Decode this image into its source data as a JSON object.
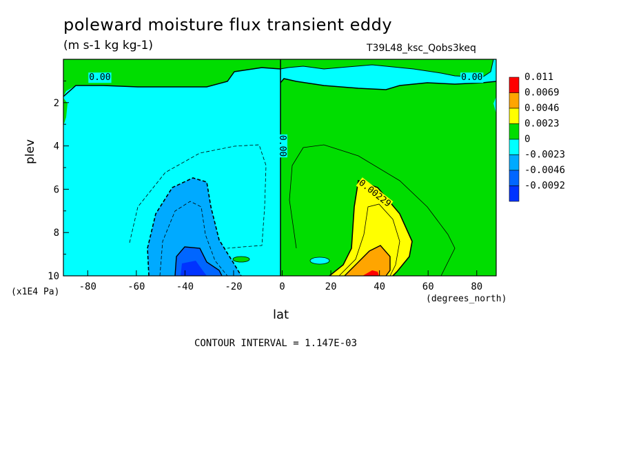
{
  "chart_data": {
    "type": "contour",
    "title": "poleward moisture flux transient eddy",
    "units": "(m s-1 kg kg-1)",
    "run_id": "T39L48_ksc_Qobs3keq",
    "xlabel": "lat",
    "x_units": "(degrees_north)",
    "ylabel": "plev",
    "y_units": "(x1E4 Pa)",
    "xlim": [
      -90,
      88
    ],
    "ylim": [
      10,
      0
    ],
    "x_ticks": [
      -80,
      -60,
      -40,
      -20,
      0,
      20,
      40,
      60,
      80
    ],
    "x_tick_labels": [
      "-80",
      "-60",
      "-40",
      "-20",
      "0",
      "20",
      "40",
      "60",
      "80"
    ],
    "y_ticks": [
      2,
      4,
      6,
      8,
      10
    ],
    "y_tick_labels": [
      "2",
      "4",
      "6",
      "8",
      "10"
    ],
    "contour_interval_text": "CONTOUR INTERVAL = 1.147E-03",
    "contour_labels": [
      {
        "text": "0.00",
        "lat": -75,
        "plev": 0.85
      },
      {
        "text": "0.00",
        "lat": 78,
        "plev": 0.85
      },
      {
        "text": "0.00",
        "lat": 0,
        "plev": 4.0
      },
      {
        "text": "0.00229",
        "lat": 38,
        "plev": 6.2
      }
    ],
    "legend": {
      "levels": [
        "0.011",
        "0.0069",
        "0.0046",
        "0.0023",
        "0",
        "-0.0023",
        "-0.0046",
        "-0.0092"
      ],
      "colors": [
        "#ff0000",
        "#ffa500",
        "#ffff00",
        "#00dd00",
        "#00ffff",
        "#00aaff",
        "#0066ff",
        "#0033ff"
      ]
    },
    "regions": [
      {
        "name": "southern-hemisphere",
        "lat_range": [
          -90,
          0
        ],
        "sign": "negative",
        "color": "#00ffff"
      },
      {
        "name": "northern-hemisphere",
        "lat_range": [
          0,
          88
        ],
        "sign": "positive",
        "color": "#00dd00"
      },
      {
        "name": "sh-min-core",
        "lat": -38,
        "plev": 9.6,
        "value_approx": -0.0069,
        "color": "#0066ff"
      },
      {
        "name": "nh-max-core",
        "lat": 35,
        "plev": 9.9,
        "value_approx": 0.011,
        "color": "#ff0000"
      }
    ]
  }
}
